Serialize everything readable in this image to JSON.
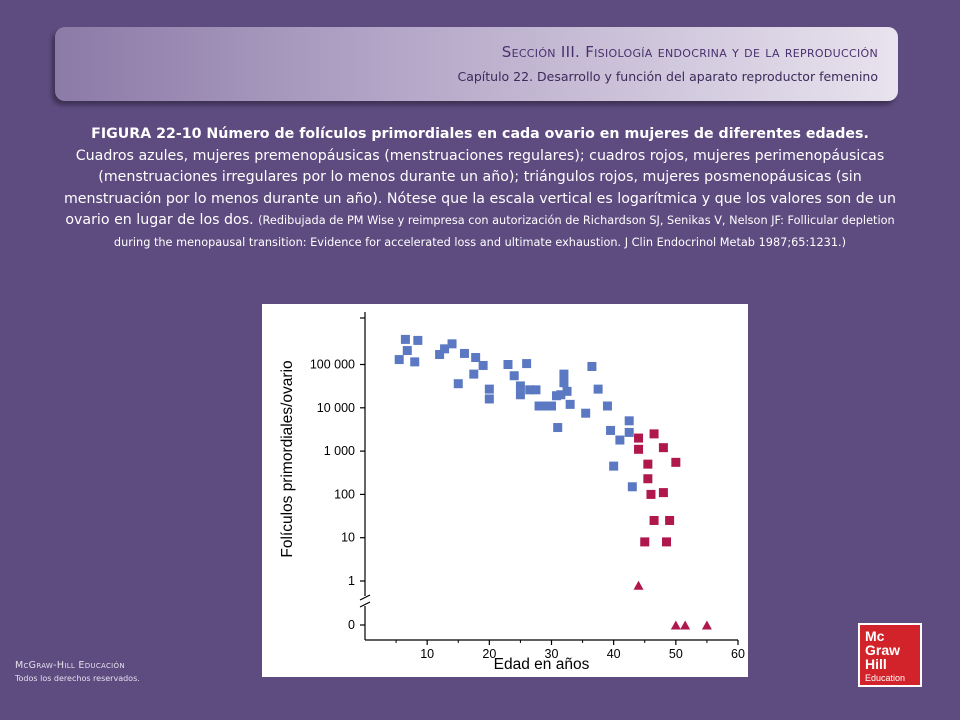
{
  "header": {
    "section": "Sección III. Fisiología endocrina y de la reproducción",
    "chapter": "Capítulo 22. Desarrollo y función del aparato reproductor femenino"
  },
  "caption": {
    "lead": "FIGURA 22-10 Número de folículos primordiales en cada ovario en mujeres de diferentes edades.",
    "body": "Cuadros azules, mujeres premenopáusicas (menstruaciones regulares); cuadros rojos, mujeres perimenopáusicas  (menstruaciones irregulares por lo menos durante un año); triángulos rojos, mujeres posmenopáusicas (sin menstruación por lo menos durante un año). Nótese que la escala vertical es logarítmica y que los valores son de un ovario en lugar de los dos.",
    "credit": "(Redibujada de PM Wise y reimpresa con autorización de Richardson SJ, Senikas V, Nelson JF: Follicular depletion during the menopausal transition: Evidence for accelerated loss and ultimate exhaustion. J Clin Endocrinol Metab 1987;65:1231.)"
  },
  "footer": {
    "brand": "McGraw-Hill Educación",
    "rights": "Todos los derechos reservados."
  },
  "logo": {
    "line1": "Mc",
    "line2": "Graw",
    "line3": "Hill",
    "line4": "Education"
  },
  "colors": {
    "background": "#5e4b80",
    "premenopausal": "#5a79c2",
    "perimenopausal": "#b0174d",
    "postmenopausal": "#b0174d"
  },
  "chart_data": {
    "type": "scatter",
    "xlabel": "Edad en años",
    "ylabel": "Folículos primordiales/ovario",
    "xlim": [
      0,
      60
    ],
    "x_ticks": [
      10,
      20,
      30,
      40,
      50,
      60
    ],
    "y_scale": "log",
    "y_axis_break": true,
    "y_ticks": [
      {
        "value": 0,
        "label": "0"
      },
      {
        "value": 1,
        "label": "1"
      },
      {
        "value": 10,
        "label": "10"
      },
      {
        "value": 100,
        "label": "100"
      },
      {
        "value": 1000,
        "label": "1 000"
      },
      {
        "value": 10000,
        "label": "10 000"
      },
      {
        "value": 100000,
        "label": "100 000"
      }
    ],
    "grid": false,
    "series": [
      {
        "marker": "square",
        "color": "#5a79c2",
        "points": [
          [
            5.5,
            130000
          ],
          [
            6.5,
            380000
          ],
          [
            6.8,
            210000
          ],
          [
            8,
            115000
          ],
          [
            8.5,
            360000
          ],
          [
            12,
            170000
          ],
          [
            12.8,
            230000
          ],
          [
            14,
            300000
          ],
          [
            15,
            36000
          ],
          [
            16,
            180000
          ],
          [
            17.5,
            60000
          ],
          [
            17.8,
            145000
          ],
          [
            19,
            95000
          ],
          [
            20,
            27000
          ],
          [
            20,
            16000
          ],
          [
            23,
            100000
          ],
          [
            24,
            55000
          ],
          [
            25,
            32000
          ],
          [
            25,
            20000
          ],
          [
            26,
            105000
          ],
          [
            26.5,
            26000
          ],
          [
            27.5,
            26000
          ],
          [
            28,
            11000
          ],
          [
            29,
            11000
          ],
          [
            30,
            11000
          ],
          [
            30.8,
            19000
          ],
          [
            31,
            3500
          ],
          [
            31.5,
            20000
          ],
          [
            32,
            60000
          ],
          [
            32,
            38000
          ],
          [
            32.5,
            24000
          ],
          [
            33,
            12000
          ],
          [
            35.5,
            7500
          ],
          [
            36.5,
            90000
          ],
          [
            37.5,
            27000
          ],
          [
            39,
            11000
          ],
          [
            39.5,
            3000
          ],
          [
            41,
            1800
          ],
          [
            40,
            450
          ],
          [
            42.5,
            2700
          ],
          [
            42.5,
            5000
          ],
          [
            43,
            150
          ]
        ]
      },
      {
        "marker": "square",
        "color": "#b0174d",
        "points": [
          [
            44,
            2000
          ],
          [
            44,
            1100
          ],
          [
            45,
            8
          ],
          [
            45.5,
            500
          ],
          [
            45.5,
            230
          ],
          [
            46,
            100
          ],
          [
            46.5,
            25
          ],
          [
            46.5,
            2500
          ],
          [
            48,
            1200
          ],
          [
            48,
            110
          ],
          [
            48.5,
            8
          ],
          [
            49,
            25
          ],
          [
            50,
            550
          ]
        ]
      },
      {
        "marker": "triangle",
        "color": "#b0174d",
        "points": [
          [
            44,
            0.8
          ],
          [
            50,
            0
          ],
          [
            51.5,
            0
          ],
          [
            55,
            0
          ]
        ]
      }
    ]
  }
}
